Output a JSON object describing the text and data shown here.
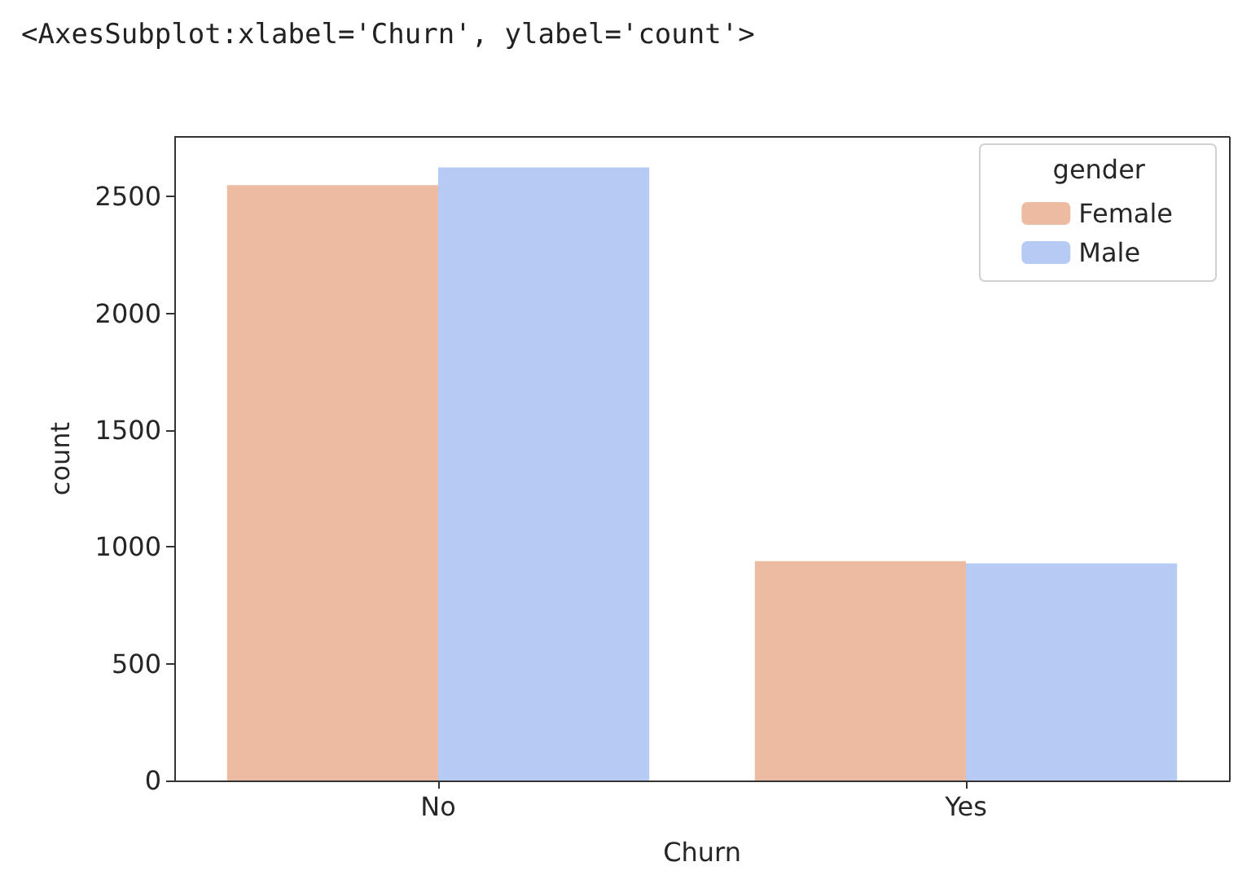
{
  "chart_data": {
    "type": "bar",
    "title": "<AxesSubplot:xlabel='Churn', ylabel='count'>",
    "xlabel": "Churn",
    "ylabel": "count",
    "legend_title": "gender",
    "categories": [
      "No",
      "Yes"
    ],
    "series": [
      {
        "name": "Female",
        "color": "#ecbba2",
        "values": [
          2549,
          939
        ]
      },
      {
        "name": "Male",
        "color": "#b5cbf4",
        "values": [
          2625,
          930
        ]
      }
    ],
    "ylim": [
      0,
      2756
    ],
    "yticks": [
      0,
      500,
      1000,
      1500,
      2000,
      2500
    ],
    "grid": false,
    "legend": "top right"
  }
}
